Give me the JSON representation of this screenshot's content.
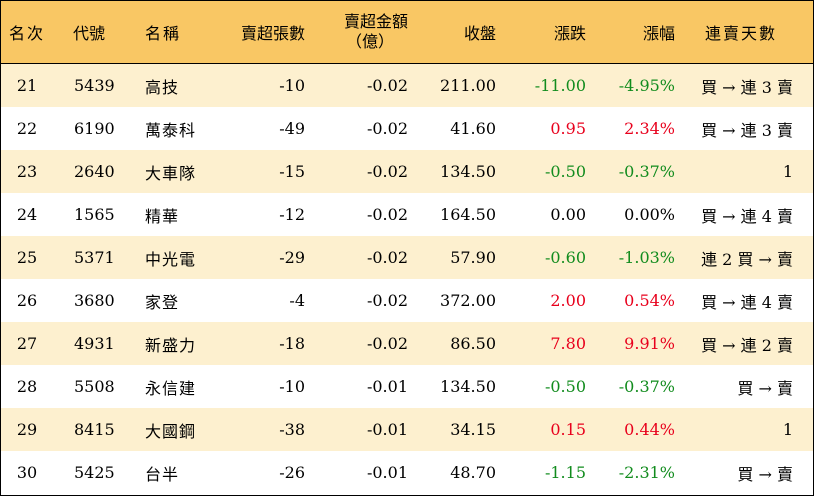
{
  "header": {
    "rank": "名次",
    "code": "代號",
    "name": "名稱",
    "net_sell_lots": "賣超張數",
    "net_sell_amount_line1": "賣超金額",
    "net_sell_amount_line2": "（億）",
    "close": "收盤",
    "change": "漲跌",
    "change_pct": "漲幅",
    "streak": "連賣天數"
  },
  "colors": {
    "header_bg": "#f9c764",
    "alt_row_bg": "#fdf0cf",
    "up": "#e8001c",
    "down": "#128c1e"
  },
  "rows": [
    {
      "rank": "21",
      "code": "5439",
      "name": "高技",
      "lots": "-10",
      "amount": "-0.02",
      "close": "211.00",
      "change": "-11.00",
      "pct": "-4.95%",
      "dir": "down",
      "streak": "買 → 連 3 賣"
    },
    {
      "rank": "22",
      "code": "6190",
      "name": "萬泰科",
      "lots": "-49",
      "amount": "-0.02",
      "close": "41.60",
      "change": "0.95",
      "pct": "2.34%",
      "dir": "up",
      "streak": "買 → 連 3 賣"
    },
    {
      "rank": "23",
      "code": "2640",
      "name": "大車隊",
      "lots": "-15",
      "amount": "-0.02",
      "close": "134.50",
      "change": "-0.50",
      "pct": "-0.37%",
      "dir": "down",
      "streak": "1"
    },
    {
      "rank": "24",
      "code": "1565",
      "name": "精華",
      "lots": "-12",
      "amount": "-0.02",
      "close": "164.50",
      "change": "0.00",
      "pct": "0.00%",
      "dir": "flat",
      "streak": "買 → 連 4 賣"
    },
    {
      "rank": "25",
      "code": "5371",
      "name": "中光電",
      "lots": "-29",
      "amount": "-0.02",
      "close": "57.90",
      "change": "-0.60",
      "pct": "-1.03%",
      "dir": "down",
      "streak": "連 2 買 → 賣"
    },
    {
      "rank": "26",
      "code": "3680",
      "name": "家登",
      "lots": "-4",
      "amount": "-0.02",
      "close": "372.00",
      "change": "2.00",
      "pct": "0.54%",
      "dir": "up",
      "streak": "買 → 連 4 賣"
    },
    {
      "rank": "27",
      "code": "4931",
      "name": "新盛力",
      "lots": "-18",
      "amount": "-0.02",
      "close": "86.50",
      "change": "7.80",
      "pct": "9.91%",
      "dir": "up",
      "streak": "買 → 連 2 賣"
    },
    {
      "rank": "28",
      "code": "5508",
      "name": "永信建",
      "lots": "-10",
      "amount": "-0.01",
      "close": "134.50",
      "change": "-0.50",
      "pct": "-0.37%",
      "dir": "down",
      "streak": "買 → 賣"
    },
    {
      "rank": "29",
      "code": "8415",
      "name": "大國鋼",
      "lots": "-38",
      "amount": "-0.01",
      "close": "34.15",
      "change": "0.15",
      "pct": "0.44%",
      "dir": "up",
      "streak": "1"
    },
    {
      "rank": "30",
      "code": "5425",
      "name": "台半",
      "lots": "-26",
      "amount": "-0.01",
      "close": "48.70",
      "change": "-1.15",
      "pct": "-2.31%",
      "dir": "down",
      "streak": "買 → 賣"
    }
  ]
}
